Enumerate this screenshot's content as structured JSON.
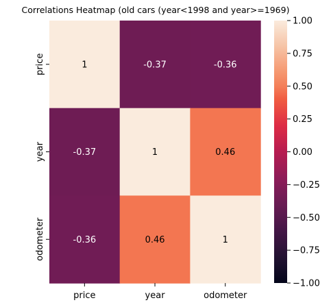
{
  "chart_data": {
    "type": "heatmap",
    "title": "Correlations Heatmap (old cars (year<1998 and year>=1969)",
    "rows": [
      "price",
      "year",
      "odometer"
    ],
    "columns": [
      "price",
      "year",
      "odometer"
    ],
    "values": [
      [
        1,
        -0.37,
        -0.36
      ],
      [
        -0.37,
        1,
        0.46
      ],
      [
        -0.36,
        0.46,
        1
      ]
    ],
    "cell_labels": [
      [
        "1",
        "-0.37",
        "-0.36"
      ],
      [
        "-0.37",
        "1",
        "0.46"
      ],
      [
        "-0.36",
        "0.46",
        "1"
      ]
    ],
    "colorbar": {
      "range": [
        -1.0,
        1.0
      ],
      "ticks": [
        1.0,
        0.75,
        0.5,
        0.25,
        0.0,
        -0.25,
        -0.5,
        -0.75,
        -1.0
      ],
      "tick_labels": [
        "1.00",
        "0.75",
        "0.50",
        "0.25",
        "0.00",
        "−0.25",
        "−0.50",
        "−0.75",
        "−1.00"
      ]
    },
    "colormap": "rocket",
    "grid": false
  }
}
